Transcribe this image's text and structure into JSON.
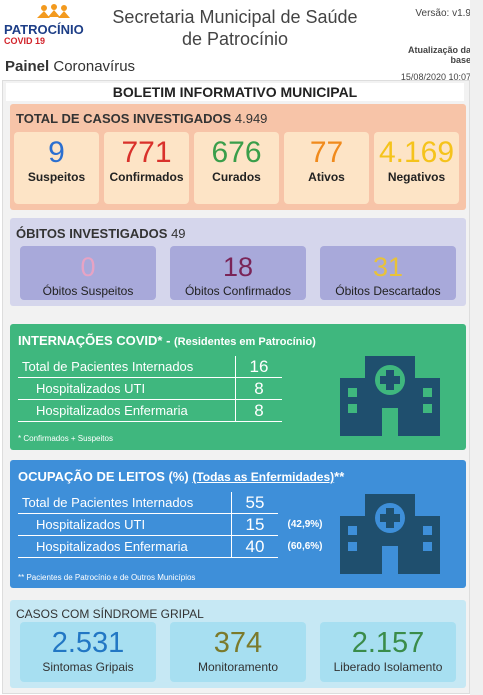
{
  "header": {
    "logo": "PATROCÍNIO",
    "logo_sub": "COVID 19",
    "title_line1": "Secretaria Municipal de Saúde",
    "title_line2": "de Patrocínio",
    "panel_bold": "Painel",
    "panel_rest": "Coronavírus",
    "version": "Versão: v1.9",
    "update_line1": "Atualização da",
    "update_line2": "base",
    "update_date": "15/08/2020 10:07"
  },
  "banner": "BOLETIM INFORMATIVO MUNICIPAL",
  "cases": {
    "label": "TOTAL DE CASOS INVESTIGADOS",
    "total": "4.949",
    "cards": [
      {
        "value": "9",
        "label": "Suspeitos"
      },
      {
        "value": "771",
        "label": "Confirmados"
      },
      {
        "value": "676",
        "label": "Curados"
      },
      {
        "value": "77",
        "label": "Ativos"
      },
      {
        "value": "4.169",
        "label": "Negativos"
      }
    ]
  },
  "deaths": {
    "label": "ÓBITOS INVESTIGADOS",
    "total": "49",
    "cards": [
      {
        "value": "0",
        "label": "Óbitos Suspeitos"
      },
      {
        "value": "18",
        "label": "Óbitos Confirmados"
      },
      {
        "value": "31",
        "label": "Óbitos Descartados"
      }
    ]
  },
  "hospitalizations": {
    "label": "INTERNAÇÕES COVID* - ",
    "sub": "(Residentes em Patrocínio)",
    "rows": [
      [
        "Total de Pacientes Internados",
        "16"
      ],
      [
        "Hospitalizados UTI",
        "8"
      ],
      [
        "Hospitalizados Enfermaria",
        "8"
      ]
    ],
    "note": "* Confirmados + Suspeitos"
  },
  "beds": {
    "label": "OCUPAÇÃO DE LEITOS (%)",
    "sub": "(Todas as Enfermidades)",
    "mark": "**",
    "rows": [
      [
        "Total de Pacientes Internados",
        "55",
        ""
      ],
      [
        "Hospitalizados UTI",
        "15",
        "(42,9%)"
      ],
      [
        "Hospitalizados Enfermaria",
        "40",
        "(60,6%)"
      ]
    ],
    "note": "** Pacientes de Patrocínio e de Outros Municípios"
  },
  "flu": {
    "label": "CASOS COM SÍNDROME GRIPAL",
    "cards": [
      {
        "value": "2.531",
        "label": "Sintomas Gripais"
      },
      {
        "value": "374",
        "label": "Monitoramento"
      },
      {
        "value": "2.157",
        "label": "Liberado Isolamento"
      }
    ]
  }
}
